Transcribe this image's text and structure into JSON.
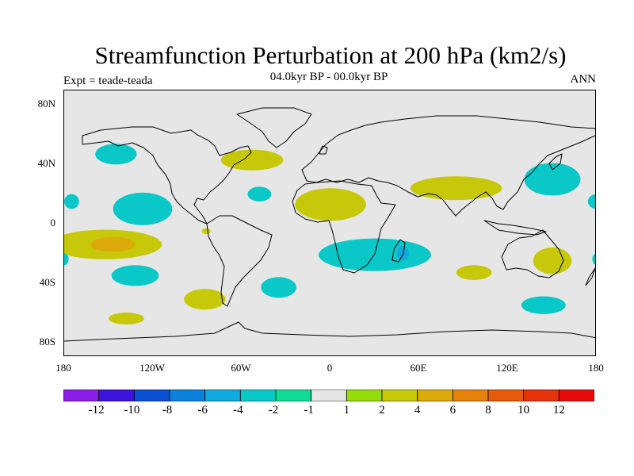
{
  "title": "Streamfunction Perturbation at 200 hPa (km2/s)",
  "subtitle": "04.0kyr BP - 00.0kyr BP",
  "left_label": "Expt = teade-teada",
  "right_label": "ANN",
  "axes": {
    "y_ticks": [
      "80N",
      "40N",
      "0",
      "40S",
      "80S"
    ],
    "x_ticks": [
      "180",
      "120W",
      "60W",
      "0",
      "60E",
      "120E",
      "180"
    ]
  },
  "colorbar": {
    "labels": [
      "-12",
      "-10",
      "-8",
      "-6",
      "-4",
      "-2",
      "-1",
      "1",
      "2",
      "4",
      "6",
      "8",
      "10",
      "12"
    ],
    "colors": [
      "#8a1ee6",
      "#3c14dc",
      "#0a50d2",
      "#0a82dc",
      "#10aadc",
      "#0ac8c8",
      "#10dc96",
      "#e6e6e6",
      "#96dc0a",
      "#c8c80a",
      "#dcaa0a",
      "#e6820a",
      "#e65a0a",
      "#e6320a",
      "#e60a0a"
    ]
  },
  "chart_data": {
    "type": "heatmap",
    "title": "Streamfunction Perturbation at 200 hPa (km2/s)",
    "units": "km2/s",
    "period": "04.0kyr BP - 00.0kyr BP",
    "season": "ANN",
    "lon_range": [
      -180,
      180
    ],
    "lat_range": [
      -90,
      90
    ],
    "contour_levels": [
      -12,
      -10,
      -8,
      -6,
      -4,
      -2,
      -1,
      1,
      2,
      4,
      6,
      8,
      10,
      12
    ],
    "anomalies": [
      {
        "lon": -145,
        "lat": 47,
        "rlon": 14,
        "rlat": 7,
        "band": "-2"
      },
      {
        "lon": -127,
        "lat": 10,
        "rlon": 20,
        "rlat": 11,
        "band": "-2"
      },
      {
        "lon": -175,
        "lat": 15,
        "rlon": 5,
        "rlat": 5,
        "band": "-2"
      },
      {
        "lon": -152,
        "lat": -14,
        "rlon": 38,
        "rlat": 10,
        "band": "2"
      },
      {
        "lon": -147,
        "lat": -14,
        "rlon": 15,
        "rlat": 5,
        "band": "4"
      },
      {
        "lon": -53,
        "lat": 43,
        "rlon": 21,
        "rlat": 7,
        "band": "2"
      },
      {
        "lon": -48,
        "lat": 20,
        "rlon": 8,
        "rlat": 5,
        "band": "-2"
      },
      {
        "lon": -132,
        "lat": -35,
        "rlon": 16,
        "rlat": 7,
        "band": "-2"
      },
      {
        "lon": -35,
        "lat": -43,
        "rlon": 12,
        "rlat": 7,
        "band": "-2"
      },
      {
        "lon": 0,
        "lat": 13,
        "rlon": 24,
        "rlat": 11,
        "band": "2"
      },
      {
        "lon": -85,
        "lat": -51,
        "rlon": 14,
        "rlat": 7,
        "band": "2"
      },
      {
        "lon": -138,
        "lat": -64,
        "rlon": 12,
        "rlat": 4,
        "band": "2"
      },
      {
        "lon": 30,
        "lat": -21,
        "rlon": 38,
        "rlat": 11,
        "band": "-2"
      },
      {
        "lon": 49,
        "lat": -20,
        "rlon": 4,
        "rlat": 5,
        "band": "-4"
      },
      {
        "lon": 85,
        "lat": 24,
        "rlon": 31,
        "rlat": 8,
        "band": "2"
      },
      {
        "lon": 150,
        "lat": 30,
        "rlon": 19,
        "rlat": 11,
        "band": "-2"
      },
      {
        "lon": 180,
        "lat": 15,
        "rlon": 6,
        "rlat": 5,
        "band": "-2"
      },
      {
        "lon": 97,
        "lat": -33,
        "rlon": 12,
        "rlat": 5,
        "band": "2"
      },
      {
        "lon": 150,
        "lat": -25,
        "rlon": 13,
        "rlat": 9,
        "band": "2"
      },
      {
        "lon": 144,
        "lat": -55,
        "rlon": 15,
        "rlat": 6,
        "band": "-2"
      },
      {
        "lon": 180,
        "lat": -24,
        "rlon": 3,
        "rlat": 4,
        "band": "-2"
      },
      {
        "lon": -180,
        "lat": -24,
        "rlon": 3,
        "rlat": 4,
        "band": "-2"
      },
      {
        "lon": -84,
        "lat": -5,
        "rlon": 3,
        "rlat": 2,
        "band": "2"
      }
    ]
  }
}
